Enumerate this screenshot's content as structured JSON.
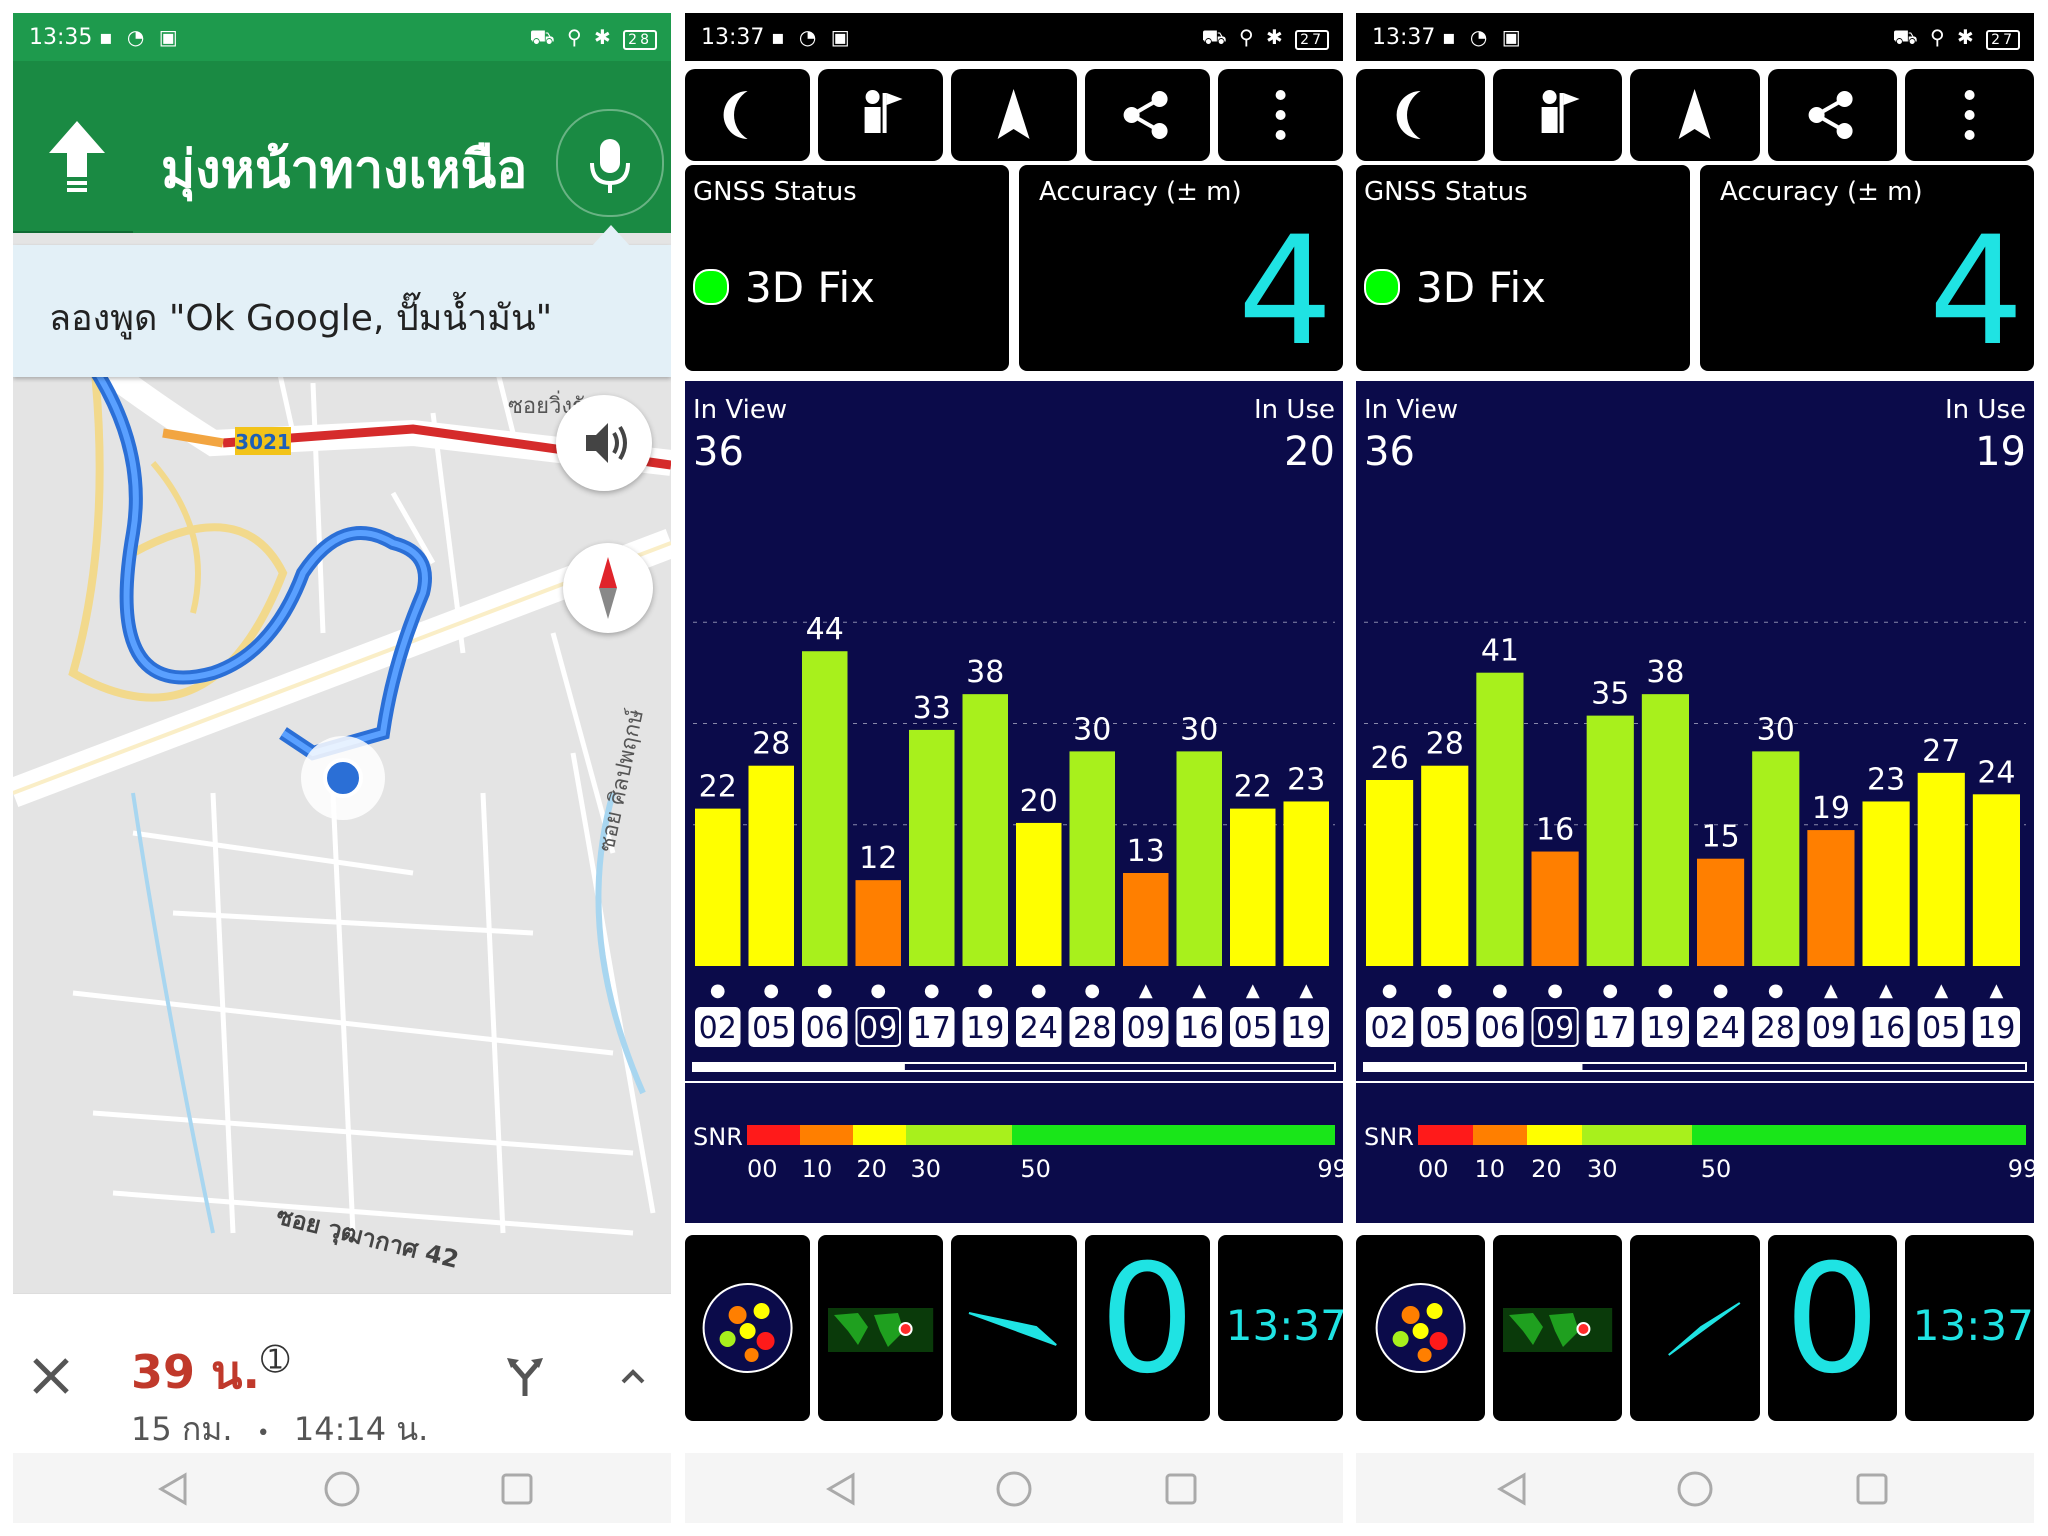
{
  "maps": {
    "status": {
      "time": "13:35",
      "battery": "28"
    },
    "direction": "มุ่งหน้าทางเหนือ",
    "hint": "ลองพูด \"Ok Google, ปั๊มน้ำมัน\"",
    "road_shield": "3021",
    "street_labels": [
      "ซอยวิ่งรั",
      "ซอย ศิลปพฤกษ์",
      "ซอย วุฒากาศ 42"
    ],
    "eta": {
      "time": "39 น.",
      "distance": "15 กม.",
      "arrival": "14:14 น.",
      "separator": "•"
    },
    "icons": [
      "up-arrow-icon",
      "mic-icon",
      "speaker-icon",
      "compass-icon",
      "close-icon",
      "route-options-icon",
      "chevron-up-icon"
    ]
  },
  "gps_panels": [
    {
      "status": {
        "time": "13:37",
        "battery": "27"
      },
      "gnss_label": "GNSS Status",
      "fix": "3D Fix",
      "accuracy_label": "Accuracy (± m)",
      "accuracy": "4",
      "in_view_label": "In View",
      "in_view": "36",
      "in_use_label": "In Use",
      "in_use": "20",
      "snr_label": "SNR",
      "snr_ticks": [
        "00",
        "10",
        "20",
        "30",
        "50",
        "99"
      ],
      "clock": "13:37",
      "zero": "0",
      "chart_data": {
        "type": "bar",
        "categories": [
          "02",
          "05",
          "06",
          "09",
          "17",
          "19",
          "24",
          "28",
          "09",
          "16",
          "05",
          "19"
        ],
        "values": [
          22,
          28,
          44,
          12,
          33,
          38,
          20,
          30,
          13,
          30,
          22,
          23
        ],
        "markers": [
          "●",
          "●",
          "●",
          "●",
          "●",
          "●",
          "●",
          "●",
          "▲",
          "▲",
          "▲",
          "▲"
        ],
        "ylim": [
          0,
          65
        ]
      }
    },
    {
      "status": {
        "time": "13:37",
        "battery": "27"
      },
      "gnss_label": "GNSS Status",
      "fix": "3D Fix",
      "accuracy_label": "Accuracy (± m)",
      "accuracy": "4",
      "in_view_label": "In View",
      "in_view": "36",
      "in_use_label": "In Use",
      "in_use": "19",
      "snr_label": "SNR",
      "snr_ticks": [
        "00",
        "10",
        "20",
        "30",
        "50",
        "99"
      ],
      "clock": "13:37",
      "zero": "0",
      "chart_data": {
        "type": "bar",
        "categories": [
          "02",
          "05",
          "06",
          "09",
          "17",
          "19",
          "24",
          "28",
          "09",
          "16",
          "05",
          "19"
        ],
        "values": [
          26,
          28,
          41,
          16,
          35,
          38,
          15,
          30,
          19,
          23,
          27,
          24
        ],
        "markers": [
          "●",
          "●",
          "●",
          "●",
          "●",
          "●",
          "●",
          "●",
          "▲",
          "▲",
          "▲",
          "▲"
        ],
        "ylim": [
          0,
          65
        ]
      }
    }
  ],
  "colors": {
    "maps_green": "#1a8a43",
    "gps_accent": "#1fe3e3",
    "sat_bg": "#0b0b4a"
  }
}
